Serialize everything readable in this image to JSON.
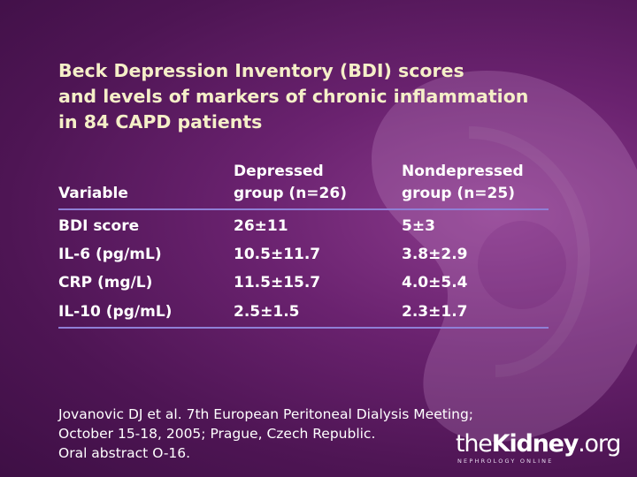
{
  "title": {
    "line1": "Beck Depression Inventory (BDI) scores",
    "line2": "and levels of markers of chronic inflammation",
    "line3": "in 84 CAPD patients"
  },
  "table": {
    "headers": {
      "variable": "Variable",
      "depressed_line1": "Depressed",
      "depressed_line2": "group (n=26)",
      "nondepressed_line1": "Nondepressed",
      "nondepressed_line2": "group (n=25)"
    },
    "rows": [
      {
        "variable": "BDI score",
        "depressed": "26±11",
        "nondepressed": "5±3"
      },
      {
        "variable": "IL-6 (pg/mL)",
        "depressed": "10.5±11.7",
        "nondepressed": "3.8±2.9"
      },
      {
        "variable": "CRP (mg/L)",
        "depressed": "11.5±15.7",
        "nondepressed": "4.0±5.4"
      },
      {
        "variable": "IL-10 (pg/mL)",
        "depressed": "2.5±1.5",
        "nondepressed": "2.3±1.7"
      }
    ]
  },
  "citation": {
    "line1": "Jovanovic DJ et al. 7th European Peritoneal Dialysis Meeting;",
    "line2": "October 15-18, 2005; Prague, Czech Republic.",
    "line3": "Oral abstract O-16."
  },
  "logo": {
    "the": "the",
    "kidney": "Kidney",
    "org": ".org",
    "tagline": "NEPHROLOGY ONLINE"
  },
  "colors": {
    "title": "#f5efc8",
    "rule": "#8f7fd6",
    "background": "#5a1a60"
  }
}
